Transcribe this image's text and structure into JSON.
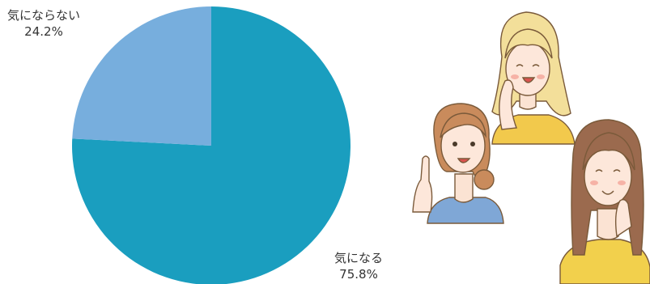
{
  "chart_data": {
    "type": "pie",
    "slices": [
      {
        "label": "気になる",
        "value": 75.8,
        "value_text": "75.8%",
        "color": "#1a9ebf"
      },
      {
        "label": "気にならない",
        "value": 24.2,
        "value_text": "24.2%",
        "color": "#77aedd"
      }
    ],
    "start_angle_deg": 0,
    "direction": "clockwise"
  },
  "illustration": {
    "icon": "three-women-discussing-illustration"
  }
}
